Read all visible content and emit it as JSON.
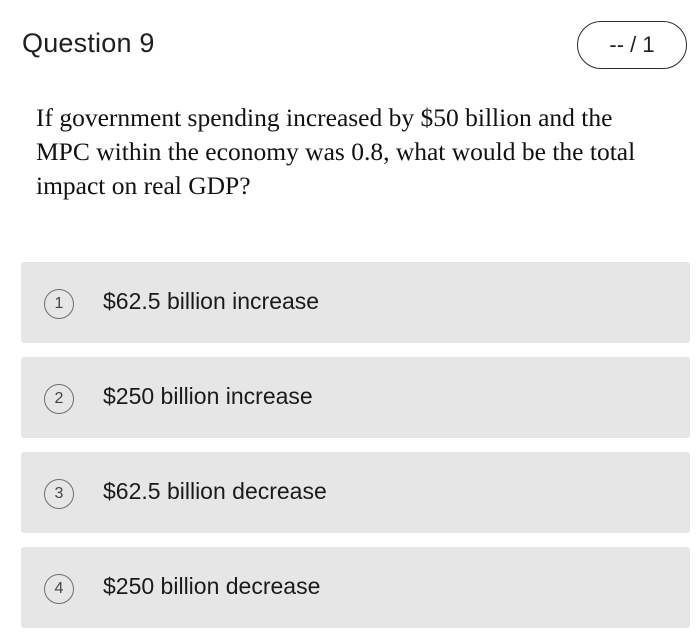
{
  "header": {
    "title": "Question 9",
    "score": "-- / 1"
  },
  "question": {
    "prompt": "If government spending increased by $50 billion and the MPC within the economy was 0.8, what would be the total impact on real GDP?"
  },
  "options": [
    {
      "number": "1",
      "label": "$62.5 billion increase"
    },
    {
      "number": "2",
      "label": "$250 billion increase"
    },
    {
      "number": "3",
      "label": "$62.5 billion decrease"
    },
    {
      "number": "4",
      "label": "$250 billion decrease"
    }
  ]
}
